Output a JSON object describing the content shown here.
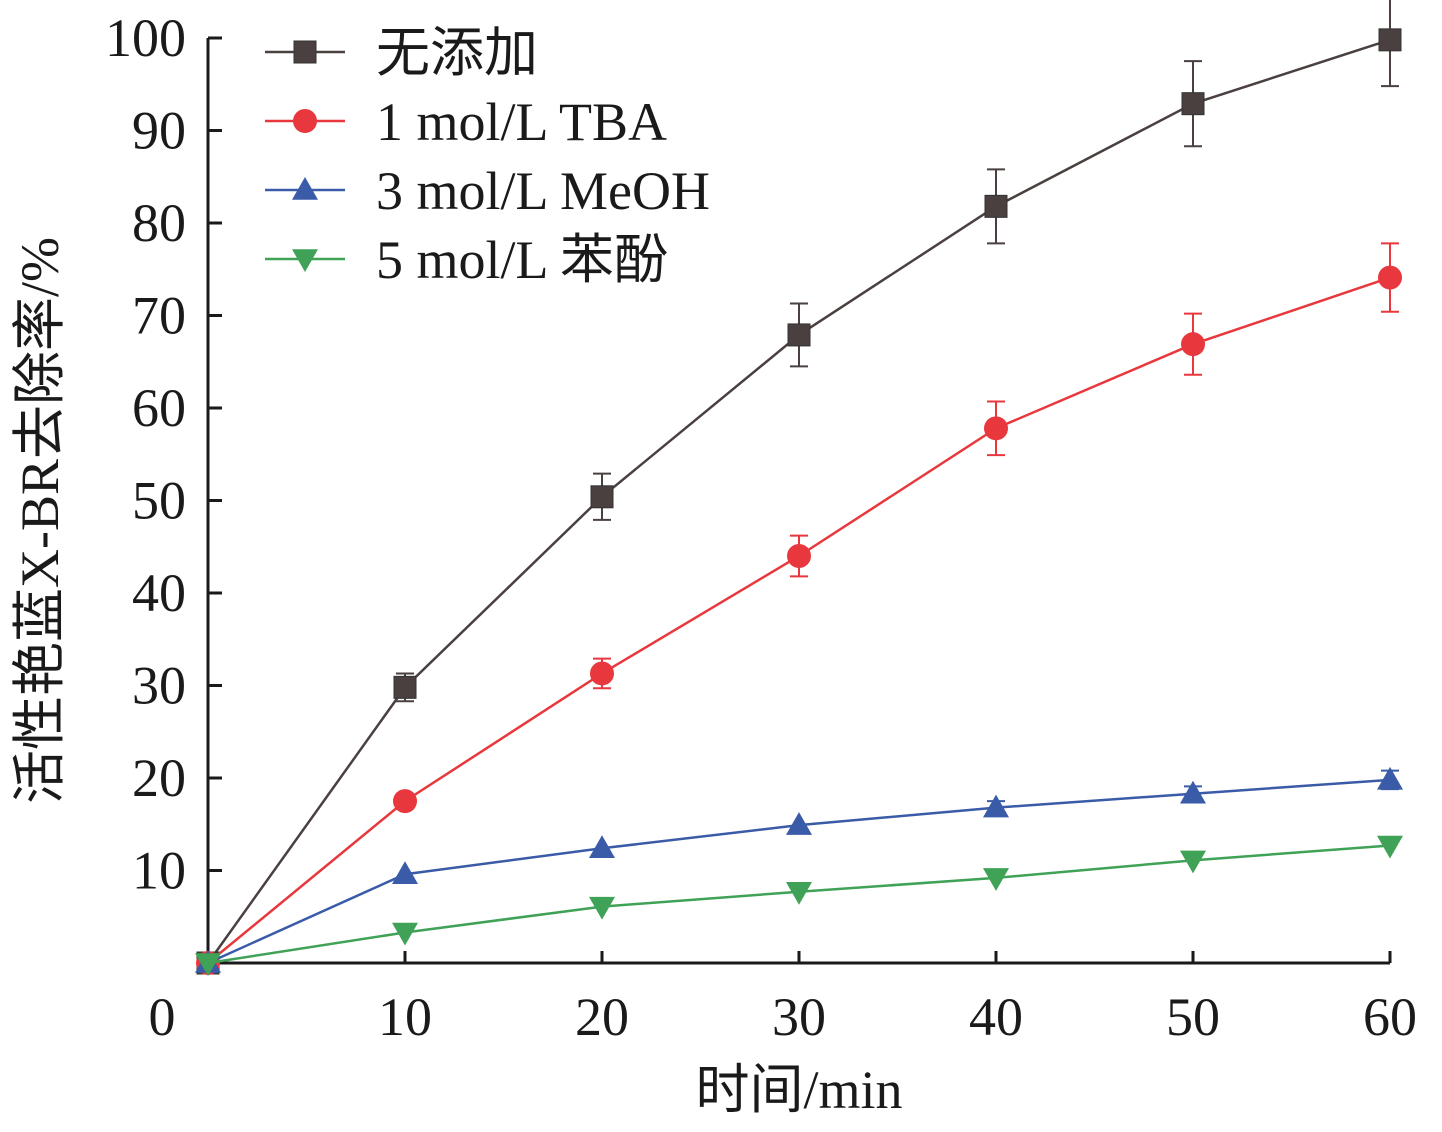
{
  "chart_data": {
    "type": "line",
    "xlabel": "时间/min",
    "ylabel": "活性艳蓝X-BR去除率/%",
    "xlim": [
      0,
      60
    ],
    "ylim": [
      0,
      100
    ],
    "x_ticks": [
      "0",
      "10",
      "20",
      "30",
      "40",
      "50",
      "60"
    ],
    "y_ticks": [
      "10",
      "20",
      "30",
      "40",
      "50",
      "60",
      "70",
      "80",
      "90",
      "100"
    ],
    "legend_position": "top-left",
    "grid": false,
    "x": [
      0,
      10,
      20,
      30,
      40,
      50,
      60
    ],
    "series": [
      {
        "name": "无添加",
        "color": "#4a4040",
        "marker": "square",
        "values": [
          0,
          29.8,
          50.4,
          67.9,
          81.8,
          92.9,
          99.8
        ],
        "errors": [
          0,
          1.5,
          2.5,
          3.4,
          4.0,
          4.6,
          5.0
        ]
      },
      {
        "name": "1 mol/L TBA",
        "color": "#e8383d",
        "marker": "circle",
        "values": [
          0,
          17.5,
          31.3,
          44.0,
          57.8,
          66.9,
          74.1
        ],
        "errors": [
          0,
          0.8,
          1.6,
          2.2,
          2.9,
          3.3,
          3.7
        ]
      },
      {
        "name": "3 mol/L MeOH",
        "color": "#3a5ba8",
        "marker": "triangle-up",
        "values": [
          0,
          9.6,
          12.4,
          14.9,
          16.8,
          18.3,
          19.8
        ],
        "errors": [
          0,
          0.5,
          0.6,
          0.6,
          0.7,
          0.8,
          1.0
        ]
      },
      {
        "name": "5 mol/L 苯酚",
        "color": "#3fa256",
        "marker": "triangle-down",
        "values": [
          0,
          3.3,
          6.1,
          7.7,
          9.2,
          11.1,
          12.7
        ],
        "errors": [
          0,
          0.3,
          0.4,
          0.4,
          0.5,
          0.5,
          0.6
        ]
      }
    ]
  }
}
